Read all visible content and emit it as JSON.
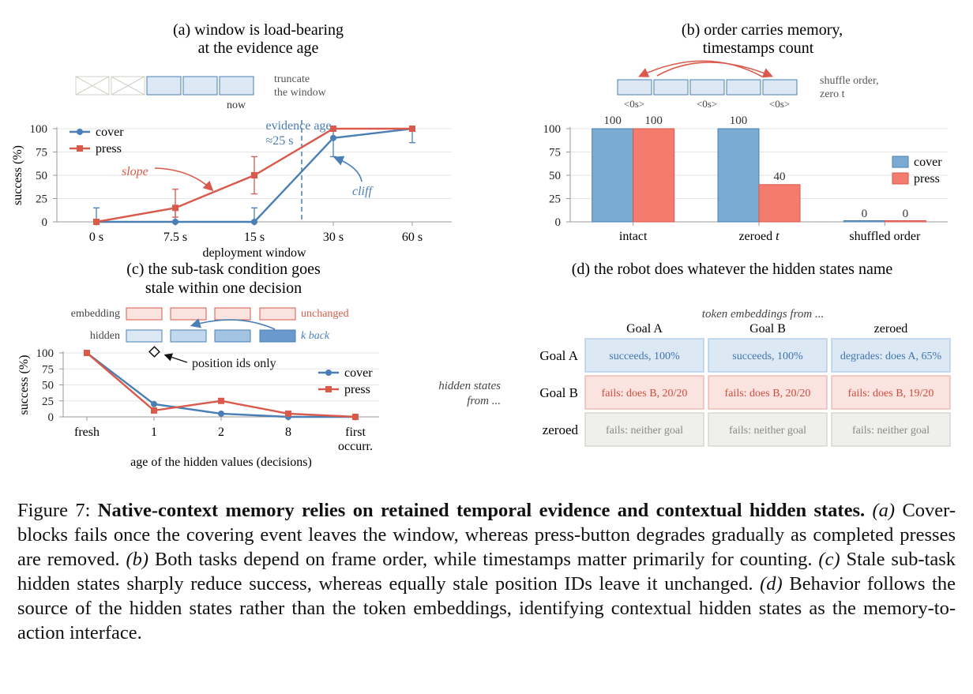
{
  "colors": {
    "cover": "#4a7fb5",
    "press": "#d9594a",
    "cover_fill": "#7baad3",
    "press_fill": "#f47c6e",
    "grid": "#e6e6e6",
    "axis": "#999999",
    "evidence": "#4a7fb5"
  },
  "panel_a": {
    "title_line1": "(a) window is load-bearing",
    "title_line2": "at the evidence age",
    "now_label": "now",
    "truncate_line1": "truncate",
    "truncate_line2": "the window",
    "evidence_line1": "evidence age",
    "evidence_line2": "≈25 s",
    "slope_label": "slope",
    "cliff_label": "cliff",
    "legend": [
      "cover",
      "press"
    ]
  },
  "panel_b": {
    "title_line1": "(b) order carries memory,",
    "title_line2": "timestamps count",
    "shuffle_line1": "shuffle order,",
    "shuffle_line2": "zero t",
    "zero_ts": [
      "<0s>",
      "<0s>",
      "<0s>"
    ],
    "legend": [
      "cover",
      "press"
    ]
  },
  "panel_c": {
    "title_line1": "(c) the sub-task condition goes",
    "title_line2": "stale within one decision",
    "embedding_label": "embedding",
    "hidden_label": "hidden",
    "unchanged_label": "unchanged",
    "kback_label": "k back",
    "position_label": "position ids only",
    "legend": [
      "cover",
      "press"
    ]
  },
  "panel_d": {
    "title": "(d) the robot does whatever the hidden states name",
    "col_caption": "token embeddings from ...",
    "row_caption_line1": "hidden states",
    "row_caption_line2": "from ...",
    "col_headers": [
      "Goal A",
      "Goal B",
      "zeroed"
    ],
    "row_headers": [
      "Goal A",
      "Goal B",
      "zeroed"
    ],
    "cells": [
      [
        "succeeds, 100%",
        "succeeds, 100%",
        "degrades: does A, 65%"
      ],
      [
        "fails: does B, 20/20",
        "fails: does B, 20/20",
        "fails: does B, 19/20"
      ],
      [
        "fails: neither goal",
        "fails: neither goal",
        "fails: neither goal"
      ]
    ]
  },
  "chart_data": [
    {
      "type": "line",
      "panel": "a",
      "x": [
        "0 s",
        "7.5 s",
        "15 s",
        "30 s",
        "60 s"
      ],
      "xlabel": "deployment window",
      "ylabel": "success (%)",
      "ylim": [
        0,
        100
      ],
      "yticks": [
        0,
        25,
        50,
        75,
        100
      ],
      "grid": true,
      "legend_position": "top-left",
      "series": [
        {
          "name": "cover",
          "values": [
            0,
            0,
            0,
            90,
            100
          ],
          "err_low": [
            0,
            0,
            0,
            20,
            15
          ],
          "err_high": [
            15,
            15,
            15,
            10,
            0
          ]
        },
        {
          "name": "press",
          "values": [
            0,
            15,
            50,
            100,
            100
          ],
          "err_low": [
            0,
            10,
            20,
            0,
            0
          ],
          "err_high": [
            0,
            20,
            20,
            0,
            0
          ]
        }
      ],
      "evidence_age_position": 2.6
    },
    {
      "type": "bar",
      "panel": "b",
      "categories": [
        "intact",
        "zeroed t",
        "shuffled order"
      ],
      "ylim": [
        0,
        100
      ],
      "yticks": [
        0,
        25,
        50,
        75,
        100
      ],
      "grid": true,
      "legend_position": "right",
      "series": [
        {
          "name": "cover",
          "values": [
            100,
            100,
            0
          ]
        },
        {
          "name": "press",
          "values": [
            100,
            40,
            0
          ]
        }
      ]
    },
    {
      "type": "line",
      "panel": "c",
      "x": [
        "fresh",
        "1",
        "2",
        "8",
        "first occurr."
      ],
      "xlabel": "age of the hidden values (decisions)",
      "ylabel": "success (%)",
      "ylim": [
        0,
        100
      ],
      "yticks": [
        0,
        25,
        50,
        75,
        100
      ],
      "grid": true,
      "legend_position": "right",
      "series": [
        {
          "name": "cover",
          "values": [
            100,
            20,
            5,
            0,
            0
          ]
        },
        {
          "name": "press",
          "values": [
            100,
            10,
            25,
            5,
            0
          ]
        }
      ],
      "position_ids_only": {
        "x": "1",
        "value": 100
      }
    }
  ],
  "caption": {
    "lead": "Figure 7: ",
    "bold": "Native-context memory relies on retained temporal evidence and contextual hidden states.",
    "a_tag": "(a)",
    "a_text": " Cover-blocks fails once the covering event leaves the window, whereas press-button degrades gradually as completed presses are removed. ",
    "b_tag": "(b)",
    "b_text": " Both tasks depend on frame order, while timestamps matter primarily for counting. ",
    "c_tag": "(c)",
    "c_text": " Stale sub-task hidden states sharply reduce success, whereas equally stale position IDs leave it unchanged. ",
    "d_tag": "(d)",
    "d_text": " Behavior follows the source of the hidden states rather than the token embeddings, identifying contextual hidden states as the memory-to-action interface."
  }
}
